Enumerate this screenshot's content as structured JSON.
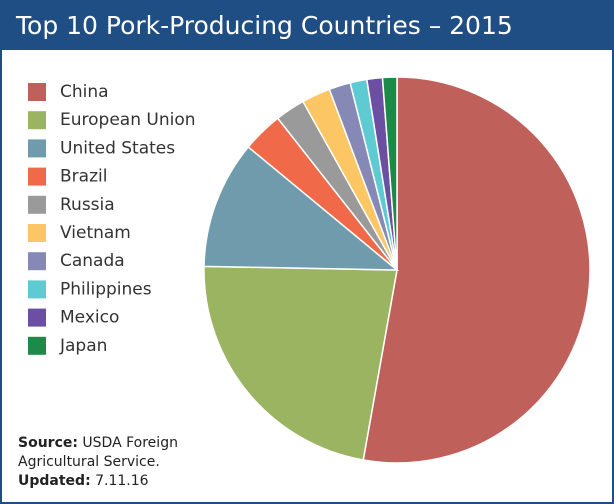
{
  "chart_data": {
    "type": "pie",
    "title": "Top 10 Pork-Producing Countries – 2015",
    "categories": [
      "China",
      "European Union",
      "United States",
      "Brazil",
      "Russia",
      "Vietnam",
      "Canada",
      "Philippines",
      "Mexico",
      "Japan"
    ],
    "values": [
      52.8,
      22.5,
      10.7,
      3.4,
      2.5,
      2.4,
      1.8,
      1.4,
      1.3,
      1.2
    ],
    "colors": [
      "#c0605a",
      "#9bb462",
      "#6f9bac",
      "#f06a4a",
      "#9a9a9a",
      "#fcc665",
      "#8689b5",
      "#5ecbd2",
      "#6b4fa3",
      "#1e8a4a"
    ],
    "legend": "upper left",
    "source": {
      "label": "Source:",
      "text": "USDA Foreign Agricultural Service."
    },
    "updated": {
      "label": "Updated:",
      "text": "7.11.16"
    }
  }
}
